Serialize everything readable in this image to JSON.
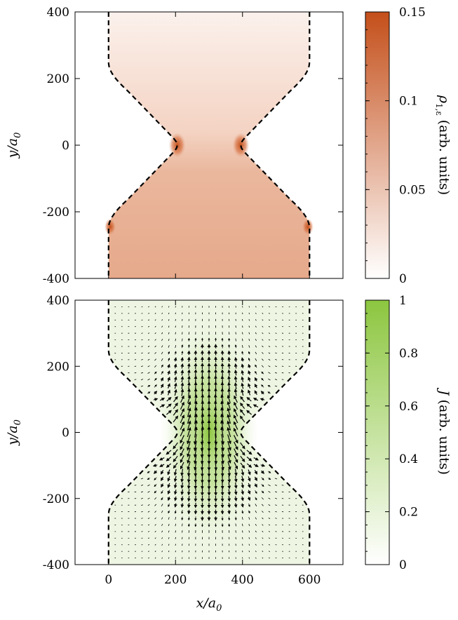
{
  "chart_data": [
    {
      "type": "heatmap",
      "panel": "top",
      "xlim": [
        -100,
        700
      ],
      "ylim": [
        -400,
        400
      ],
      "xticks": [
        "0",
        "200",
        "400",
        "600"
      ],
      "yticks": [
        "400",
        "200",
        "0",
        "-200",
        "-400"
      ],
      "xlabel": "",
      "ylabel": "y/a0",
      "colorbar": {
        "label": "ρ1,ε (arb. units)",
        "range": [
          0,
          0.15
        ],
        "ticks": [
          "0.15",
          "0.1",
          "0.05",
          "0"
        ],
        "color_low": "#ffffff",
        "color_high": "#c44f1a"
      },
      "boundary": "dashed",
      "description_points": {
        "hotspots": [
          {
            "x": 205,
            "y": 0,
            "value": 0.15
          },
          {
            "x": 395,
            "y": 0,
            "value": 0.15
          },
          {
            "x": 5,
            "y": -245,
            "value": 0.06
          },
          {
            "x": 595,
            "y": -245,
            "value": 0.06
          }
        ],
        "lower_region_value": 0.06,
        "upper_region_value": 0.01
      }
    },
    {
      "type": "heatmap",
      "panel": "bottom",
      "xlim": [
        -100,
        700
      ],
      "ylim": [
        -400,
        400
      ],
      "xticks": [
        "0",
        "200",
        "400",
        "600"
      ],
      "yticks": [
        "400",
        "200",
        "0",
        "-200",
        "-400"
      ],
      "xlabel": "x/a0",
      "ylabel": "y/a0",
      "colorbar": {
        "label": "J (arb. units)",
        "range": [
          0,
          1
        ],
        "ticks": [
          "1",
          "0.8",
          "0.6",
          "0.4",
          "0.2",
          "0"
        ],
        "color_low": "#ffffff",
        "color_high": "#8cc63f"
      },
      "boundary": "dashed",
      "vector_field": "current density arrows",
      "description_points": {
        "peak": {
          "x": 300,
          "y": 0,
          "value": 0.8
        }
      }
    }
  ],
  "colors": {
    "rho_high": "#c44f1a",
    "j_high": "#8cc63f",
    "boundary": "#000000"
  }
}
